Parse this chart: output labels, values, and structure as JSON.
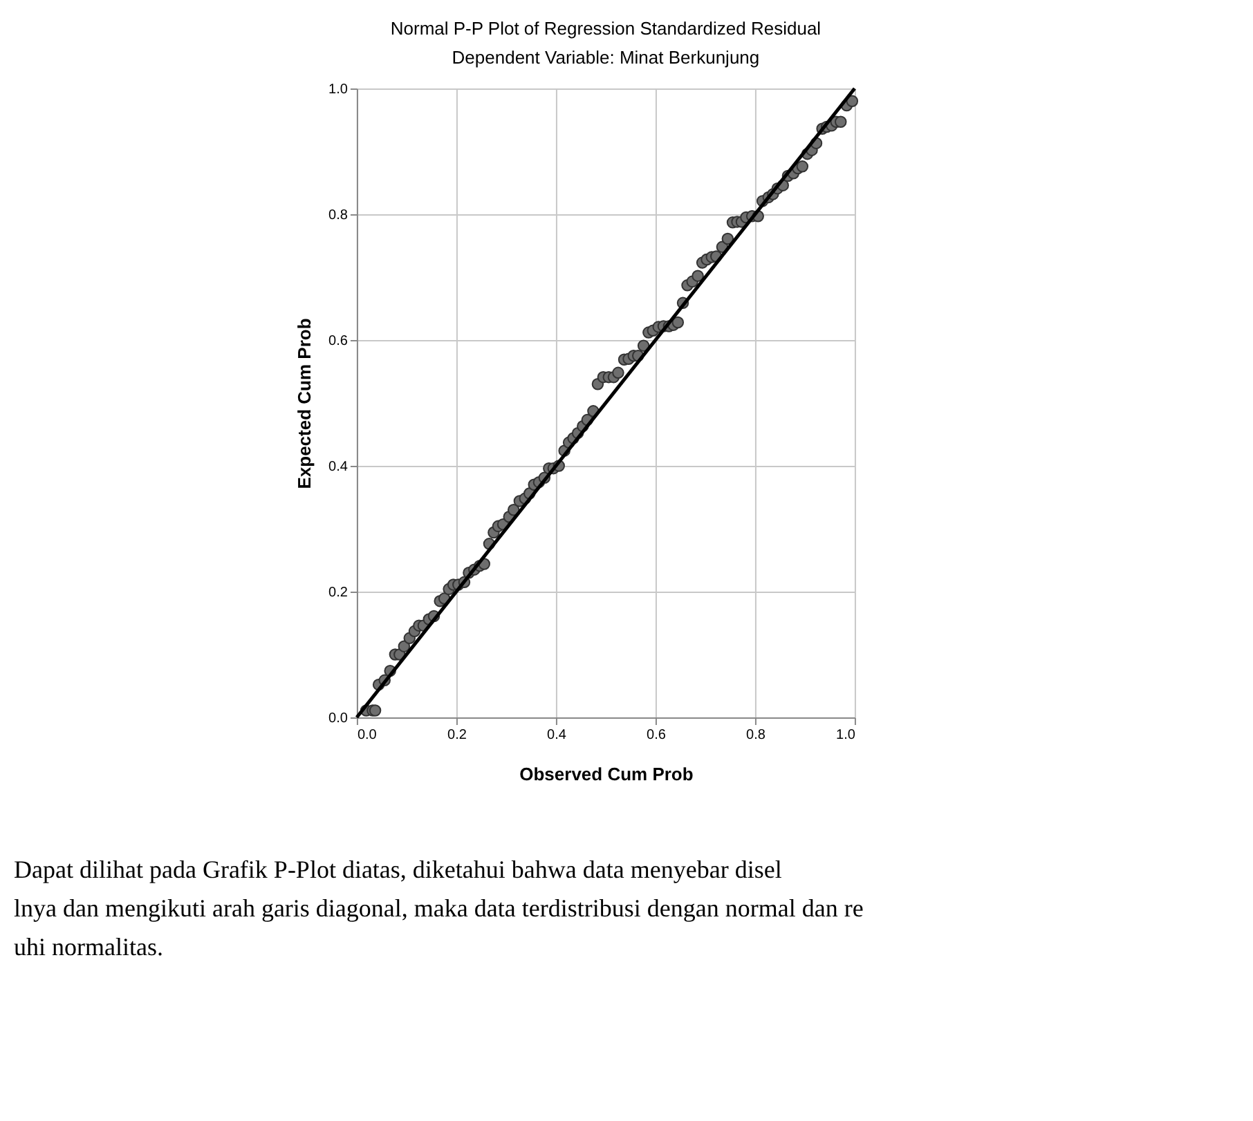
{
  "chart_data": {
    "type": "scatter",
    "title": "Normal P-P Plot of Regression Standardized Residual",
    "subtitle": "Dependent Variable: Minat Berkunjung",
    "xlabel": "Observed Cum Prob",
    "ylabel": "Expected Cum Prob",
    "xlim": [
      0,
      1
    ],
    "ylim": [
      0,
      1
    ],
    "xticks": [
      {
        "value": 0,
        "label": "0.0"
      },
      0.2,
      0.4,
      0.6,
      0.8,
      {
        "value": 1,
        "label": "1.0"
      }
    ],
    "yticks": [
      {
        "value": 0,
        "label": "0.0"
      },
      0.2,
      0.4,
      0.6,
      0.8,
      {
        "value": 1,
        "label": "1.0"
      }
    ],
    "grid": true,
    "series": [
      {
        "marker": "circle",
        "color": "#6e6e6e",
        "x": [
          0.019,
          0.032,
          0.037,
          0.044,
          0.056,
          0.067,
          0.077,
          0.086,
          0.095,
          0.106,
          0.116,
          0.125,
          0.134,
          0.145,
          0.155,
          0.167,
          0.176,
          0.185,
          0.194,
          0.204,
          0.216,
          0.225,
          0.236,
          0.247,
          0.256,
          0.266,
          0.275,
          0.284,
          0.294,
          0.306,
          0.315,
          0.327,
          0.338,
          0.347,
          0.356,
          0.366,
          0.377,
          0.386,
          0.395,
          0.406,
          0.417,
          0.426,
          0.435,
          0.444,
          0.454,
          0.463,
          0.475,
          0.484,
          0.495,
          0.506,
          0.516,
          0.525,
          0.537,
          0.546,
          0.556,
          0.565,
          0.576,
          0.586,
          0.595,
          0.606,
          0.616,
          0.627,
          0.636,
          0.645,
          0.655,
          0.664,
          0.674,
          0.685,
          0.694,
          0.703,
          0.713,
          0.722,
          0.734,
          0.745,
          0.755,
          0.764,
          0.773,
          0.782,
          0.794,
          0.806,
          0.815,
          0.827,
          0.836,
          0.845,
          0.856,
          0.866,
          0.877,
          0.886,
          0.895,
          0.905,
          0.914,
          0.923,
          0.935,
          0.944,
          0.954,
          0.963,
          0.972,
          0.984,
          0.995
        ],
        "values": [
          0.011,
          0.011,
          0.011,
          0.052,
          0.059,
          0.074,
          0.1,
          0.1,
          0.113,
          0.126,
          0.137,
          0.146,
          0.146,
          0.156,
          0.161,
          0.185,
          0.189,
          0.204,
          0.211,
          0.211,
          0.215,
          0.23,
          0.235,
          0.241,
          0.244,
          0.276,
          0.294,
          0.304,
          0.307,
          0.319,
          0.33,
          0.344,
          0.348,
          0.356,
          0.37,
          0.374,
          0.381,
          0.396,
          0.396,
          0.4,
          0.424,
          0.437,
          0.444,
          0.452,
          0.463,
          0.473,
          0.487,
          0.53,
          0.541,
          0.541,
          0.541,
          0.548,
          0.569,
          0.57,
          0.575,
          0.575,
          0.591,
          0.612,
          0.615,
          0.621,
          0.622,
          0.622,
          0.624,
          0.628,
          0.659,
          0.687,
          0.693,
          0.702,
          0.723,
          0.728,
          0.732,
          0.733,
          0.748,
          0.761,
          0.787,
          0.788,
          0.788,
          0.795,
          0.797,
          0.797,
          0.821,
          0.827,
          0.832,
          0.841,
          0.846,
          0.861,
          0.865,
          0.873,
          0.876,
          0.896,
          0.902,
          0.913,
          0.936,
          0.939,
          0.941,
          0.947,
          0.947,
          0.973,
          0.98
        ]
      },
      {
        "type": "line",
        "line_style": "solid",
        "color": "#000000",
        "x": [
          0,
          1
        ],
        "values": [
          0,
          1
        ]
      }
    ],
    "annotations": [
      "Dapat dilihat pada Grafik P-Plot diatas, diketahui bahwa data menyebar disel",
      "lnya dan mengikuti arah garis diagonal, maka data terdistribusi dengan normal dan re",
      "uhi normalitas."
    ]
  }
}
